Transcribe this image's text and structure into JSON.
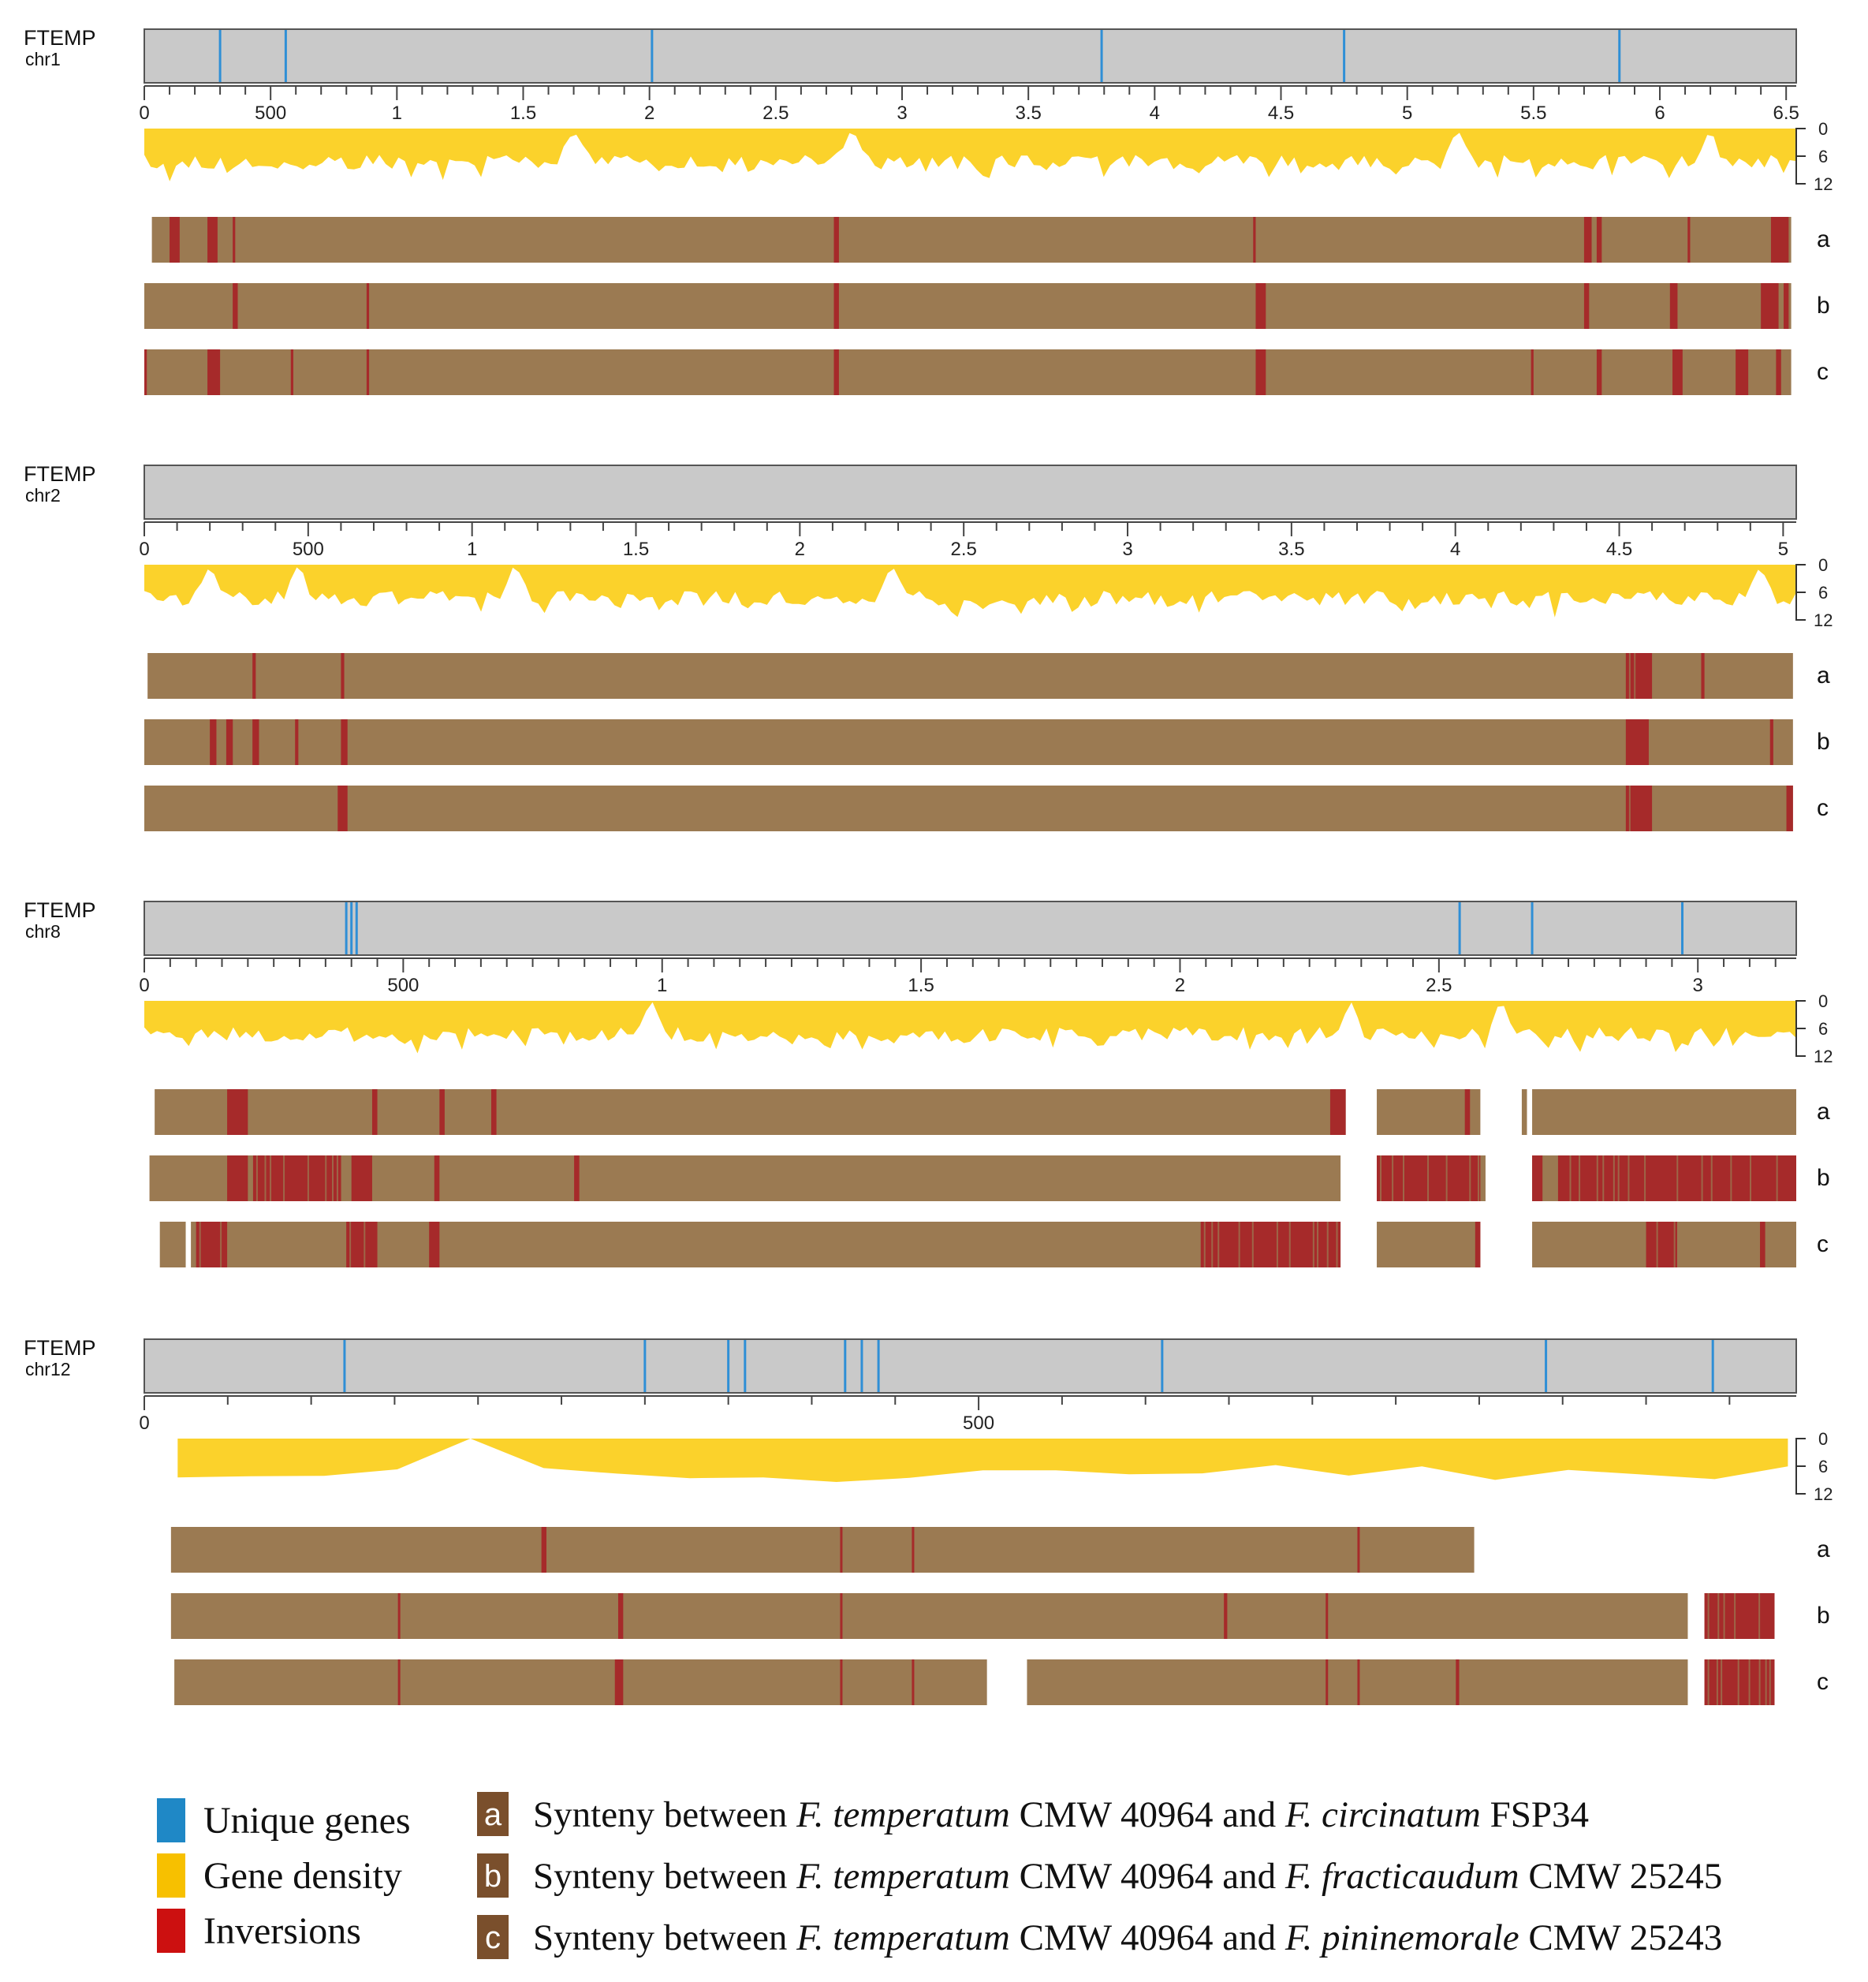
{
  "colors": {
    "unique": "#2f8fd6",
    "density": "#fbd22b",
    "inversion": "#a62a2a",
    "synteny": "#9b7a52",
    "chrom_fill": "#c9c9c9",
    "chrom_stroke": "#555555",
    "legend_unique": "#1f88c6",
    "legend_density": "#f7c000",
    "legend_inversion": "#cc1010",
    "legend_badge": "#7a4f2c"
  },
  "density_axis": [
    "0",
    "6",
    "12"
  ],
  "panels": [
    {
      "id": "chr1",
      "species": "FTEMP",
      "chrom": "chr1",
      "length": 6.54,
      "unique_genes": [
        0.3,
        0.56,
        2.01,
        3.79,
        4.75,
        5.84
      ],
      "ticks": {
        "minor": 0.1,
        "labels": [
          {
            "v": 0,
            "t": "0"
          },
          {
            "v": 0.5,
            "t": "500"
          },
          {
            "v": 1,
            "t": "1"
          },
          {
            "v": 1.5,
            "t": "1.5"
          },
          {
            "v": 2,
            "t": "2"
          },
          {
            "v": 2.5,
            "t": "2.5"
          },
          {
            "v": 3,
            "t": "3"
          },
          {
            "v": 3.5,
            "t": "3.5"
          },
          {
            "v": 4,
            "t": "4"
          },
          {
            "v": 4.5,
            "t": "4.5"
          },
          {
            "v": 5,
            "t": "5"
          },
          {
            "v": 5.5,
            "t": "5.5"
          },
          {
            "v": 6,
            "t": "6"
          },
          {
            "v": 6.5,
            "t": "6.5"
          }
        ]
      },
      "density_peaks": [
        1.7,
        2.8,
        5.2,
        6.2
      ],
      "tracks": [
        {
          "label": "a",
          "segments": [
            [
              0.03,
              6.52
            ]
          ],
          "inversions": [
            [
              0.1,
              0.14
            ],
            [
              0.25,
              0.29
            ],
            [
              0.35,
              0.36
            ],
            [
              2.73,
              2.75
            ],
            [
              4.39,
              4.4
            ],
            [
              5.7,
              5.73
            ],
            [
              5.75,
              5.77
            ],
            [
              6.11,
              6.12
            ],
            [
              6.44,
              6.51
            ]
          ]
        },
        {
          "label": "b",
          "segments": [
            [
              0.0,
              6.52
            ]
          ],
          "inversions": [
            [
              0.35,
              0.37
            ],
            [
              0.88,
              0.89
            ],
            [
              2.73,
              2.75
            ],
            [
              4.4,
              4.44
            ],
            [
              5.7,
              5.72
            ],
            [
              6.04,
              6.07
            ],
            [
              6.4,
              6.47
            ],
            [
              6.49,
              6.51
            ]
          ]
        },
        {
          "label": "c",
          "segments": [
            [
              0.0,
              6.52
            ]
          ],
          "inversions": [
            [
              0.0,
              0.01
            ],
            [
              0.25,
              0.3
            ],
            [
              0.58,
              0.59
            ],
            [
              0.88,
              0.89
            ],
            [
              2.73,
              2.75
            ],
            [
              4.4,
              4.44
            ],
            [
              5.49,
              5.5
            ],
            [
              5.75,
              5.77
            ],
            [
              6.05,
              6.09
            ],
            [
              6.3,
              6.35
            ],
            [
              6.46,
              6.48
            ]
          ]
        }
      ]
    },
    {
      "id": "chr2",
      "species": "FTEMP",
      "chrom": "chr2",
      "length": 5.04,
      "unique_genes": [],
      "ticks": {
        "minor": 0.1,
        "labels": [
          {
            "v": 0,
            "t": "0"
          },
          {
            "v": 0.5,
            "t": "500"
          },
          {
            "v": 1,
            "t": "1"
          },
          {
            "v": 1.5,
            "t": "1.5"
          },
          {
            "v": 2,
            "t": "2"
          },
          {
            "v": 2.5,
            "t": "2.5"
          },
          {
            "v": 3,
            "t": "3"
          },
          {
            "v": 3.5,
            "t": "3.5"
          },
          {
            "v": 4,
            "t": "4"
          },
          {
            "v": 4.5,
            "t": "4.5"
          },
          {
            "v": 5,
            "t": "5"
          }
        ]
      },
      "density_peaks": [
        0.2,
        0.47,
        1.13,
        2.28,
        4.93
      ],
      "tracks": [
        {
          "label": "a",
          "segments": [
            [
              0.01,
              5.03
            ]
          ],
          "inversions": [
            [
              0.33,
              0.34
            ],
            [
              0.6,
              0.61
            ],
            [
              4.52,
              4.6
            ],
            [
              4.75,
              4.76
            ]
          ]
        },
        {
          "label": "b",
          "segments": [
            [
              0.0,
              5.03
            ]
          ],
          "inversions": [
            [
              0.2,
              0.22
            ],
            [
              0.25,
              0.27
            ],
            [
              0.33,
              0.35
            ],
            [
              0.46,
              0.47
            ],
            [
              0.6,
              0.62
            ],
            [
              4.52,
              4.59
            ],
            [
              4.96,
              4.97
            ]
          ]
        },
        {
          "label": "c",
          "segments": [
            [
              0.0,
              5.03
            ]
          ],
          "inversions": [
            [
              0.59,
              0.62
            ],
            [
              4.52,
              4.6
            ],
            [
              5.01,
              5.03
            ]
          ]
        }
      ]
    },
    {
      "id": "chr8",
      "species": "FTEMP",
      "chrom": "chr8",
      "length": 3.19,
      "unique_genes": [
        0.39,
        0.4,
        0.41,
        2.54,
        2.68,
        2.97
      ],
      "ticks": {
        "minor": 0.05,
        "labels": [
          {
            "v": 0,
            "t": "0"
          },
          {
            "v": 0.5,
            "t": "500"
          },
          {
            "v": 1,
            "t": "1"
          },
          {
            "v": 1.5,
            "t": "1.5"
          },
          {
            "v": 2,
            "t": "2"
          },
          {
            "v": 2.5,
            "t": "2.5"
          },
          {
            "v": 3,
            "t": "3"
          }
        ]
      },
      "density_peaks": [
        0.98,
        2.33,
        2.62
      ],
      "tracks": [
        {
          "label": "a",
          "segments": [
            [
              0.02,
              2.32
            ],
            [
              2.38,
              2.58
            ],
            [
              2.66,
              2.67
            ],
            [
              2.68,
              3.19
            ]
          ],
          "inversions": [
            [
              0.16,
              0.2
            ],
            [
              0.44,
              0.45
            ],
            [
              0.57,
              0.58
            ],
            [
              0.67,
              0.68
            ],
            [
              2.29,
              2.32
            ],
            [
              2.55,
              2.56
            ]
          ]
        },
        {
          "label": "b",
          "segments": [
            [
              0.01,
              2.31
            ],
            [
              2.38,
              2.59
            ],
            [
              2.68,
              3.19
            ]
          ],
          "inversions": [
            [
              0.16,
              0.2
            ],
            [
              0.21,
              0.38
            ],
            [
              0.4,
              0.44
            ],
            [
              0.56,
              0.57
            ],
            [
              0.83,
              0.84
            ],
            [
              2.38,
              2.58
            ],
            [
              2.68,
              2.7
            ],
            [
              2.73,
              3.19
            ]
          ]
        },
        {
          "label": "c",
          "segments": [
            [
              0.03,
              0.08
            ],
            [
              0.09,
              2.31
            ],
            [
              2.38,
              2.58
            ],
            [
              2.68,
              3.19
            ]
          ],
          "inversions": [
            [
              0.1,
              0.16
            ],
            [
              0.39,
              0.45
            ],
            [
              0.55,
              0.57
            ],
            [
              2.04,
              2.31
            ],
            [
              2.57,
              2.58
            ],
            [
              2.9,
              2.96
            ],
            [
              3.12,
              3.13
            ]
          ]
        }
      ]
    },
    {
      "id": "chr12",
      "species": "FTEMP",
      "chrom": "chr12",
      "length": 0.99,
      "unique_genes": [
        0.12,
        0.3,
        0.35,
        0.36,
        0.42,
        0.43,
        0.44,
        0.61,
        0.84,
        0.94
      ],
      "ticks": {
        "minor": 0.05,
        "labels": [
          {
            "v": 0,
            "t": "0"
          },
          {
            "v": 0.5,
            "t": "500"
          }
        ]
      },
      "density_peaks": [
        0.18,
        0.75
      ],
      "tracks": [
        {
          "label": "a",
          "segments": [
            [
              0.016,
              0.797
            ]
          ],
          "inversions": [
            [
              0.238,
              0.241
            ],
            [
              0.417,
              0.418
            ],
            [
              0.46,
              0.461
            ],
            [
              0.727,
              0.728
            ]
          ]
        },
        {
          "label": "b",
          "segments": [
            [
              0.016,
              0.925
            ],
            [
              0.935,
              0.977
            ]
          ],
          "inversions": [
            [
              0.152,
              0.153
            ],
            [
              0.284,
              0.287
            ],
            [
              0.417,
              0.418
            ],
            [
              0.647,
              0.649
            ],
            [
              0.708,
              0.709
            ],
            [
              0.935,
              0.977
            ]
          ]
        },
        {
          "label": "c",
          "segments": [
            [
              0.018,
              0.505
            ],
            [
              0.529,
              0.925
            ],
            [
              0.935,
              0.977
            ]
          ],
          "inversions": [
            [
              0.152,
              0.153
            ],
            [
              0.282,
              0.287
            ],
            [
              0.417,
              0.418
            ],
            [
              0.46,
              0.461
            ],
            [
              0.708,
              0.709
            ],
            [
              0.727,
              0.728
            ],
            [
              0.786,
              0.788
            ],
            [
              0.935,
              0.977
            ]
          ]
        }
      ]
    }
  ],
  "legend": {
    "items": [
      {
        "key": "unique",
        "label": "Unique genes"
      },
      {
        "key": "density",
        "label": "Gene density"
      },
      {
        "key": "inversion",
        "label": "Inversions"
      }
    ],
    "synteny": [
      {
        "badge": "a",
        "prefix": "Synteny between ",
        "sp1": "F. temperatum",
        "mid": " CMW 40964 and ",
        "sp2": "F. circinatum",
        "suffix": " FSP34"
      },
      {
        "badge": "b",
        "prefix": "Synteny between ",
        "sp1": "F. temperatum",
        "mid": " CMW 40964 and ",
        "sp2": "F. fracticaudum",
        "suffix": " CMW 25245"
      },
      {
        "badge": "c",
        "prefix": "Synteny between ",
        "sp1": "F. temperatum",
        "mid": " CMW 40964 and ",
        "sp2": "F. pininemorale",
        "suffix": " CMW 25243"
      }
    ]
  }
}
